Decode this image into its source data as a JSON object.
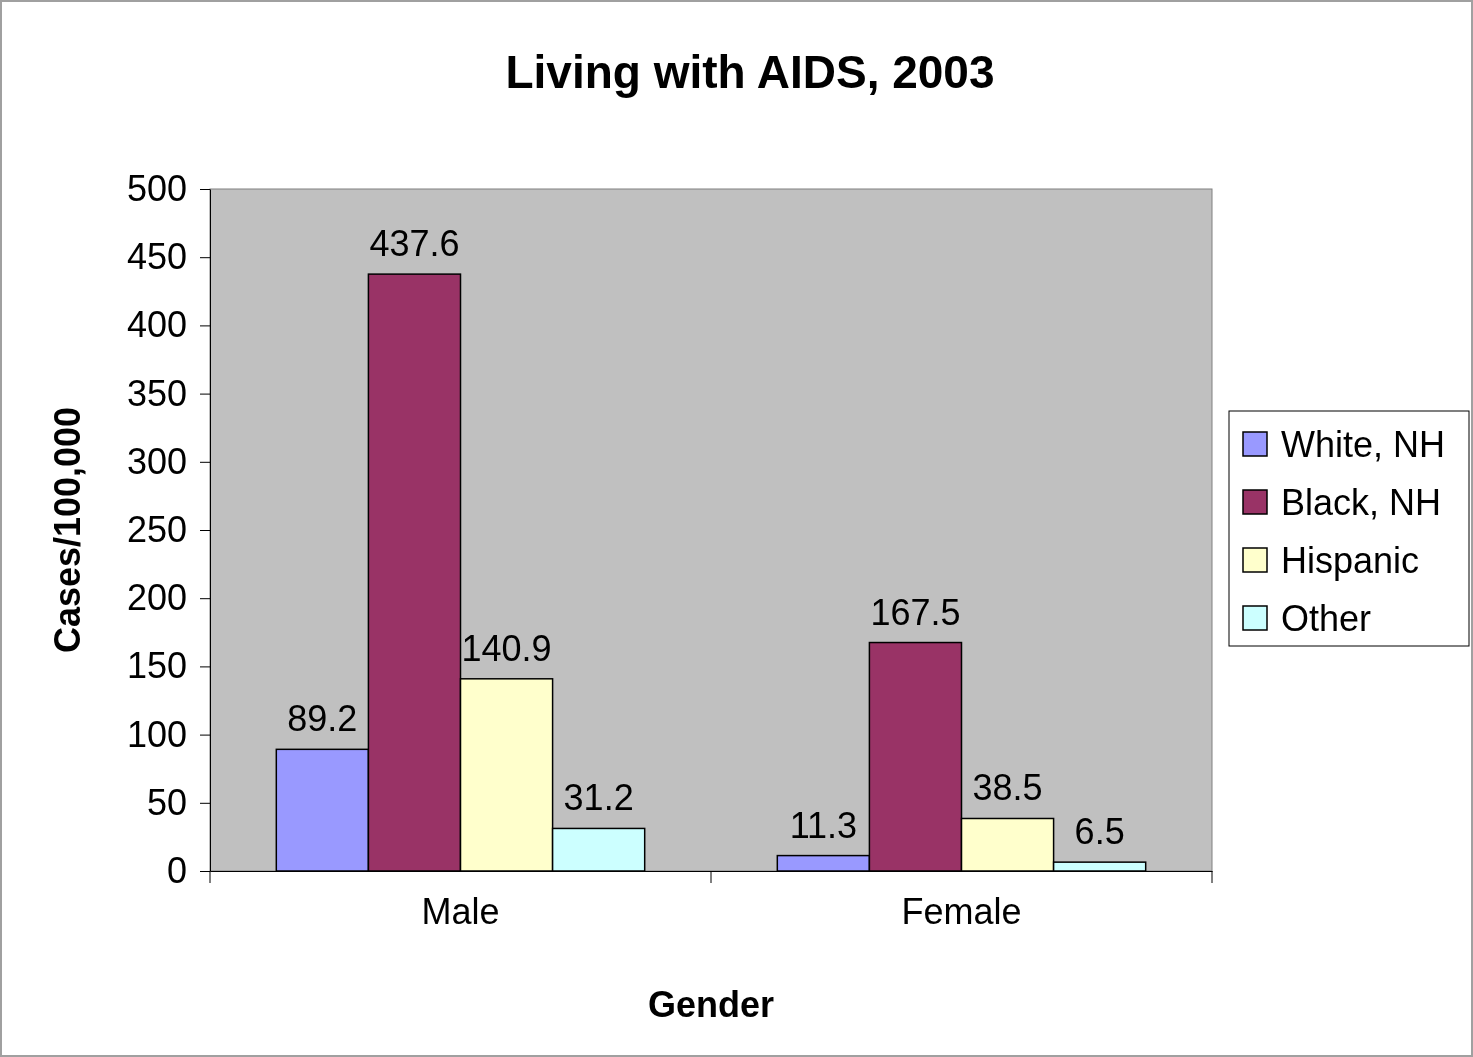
{
  "chart_data": {
    "type": "bar",
    "title": "Living with AIDS, 2003",
    "xlabel": "Gender",
    "ylabel": "Cases/100,000",
    "categories": [
      "Male",
      "Female"
    ],
    "series": [
      {
        "name": "White, NH",
        "color": "#9999ff",
        "values": [
          89.2,
          11.3
        ]
      },
      {
        "name": "Black, NH",
        "color": "#993366",
        "values": [
          437.6,
          167.5
        ]
      },
      {
        "name": "Hispanic",
        "color": "#ffffcc",
        "values": [
          140.9,
          38.5
        ]
      },
      {
        "name": "Other",
        "color": "#ccffff",
        "values": [
          31.2,
          6.5
        ]
      }
    ],
    "ylim": [
      0,
      500
    ],
    "yticks": [
      0,
      50,
      100,
      150,
      200,
      250,
      300,
      350,
      400,
      450,
      500
    ],
    "data_labels": true,
    "legend": "right"
  }
}
